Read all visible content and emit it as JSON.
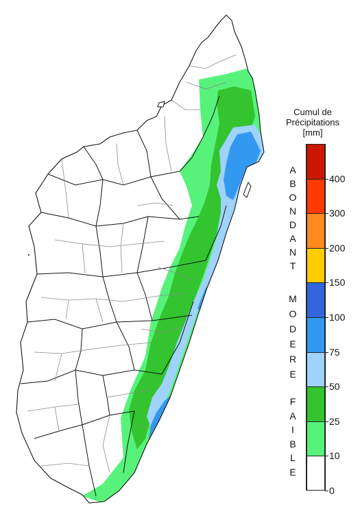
{
  "map": {
    "zones": [
      {
        "name": "zone-10-25",
        "color": "#57f27a"
      },
      {
        "name": "zone-25-50",
        "color": "#33c430"
      },
      {
        "name": "zone-50-75",
        "color": "#9fd3fb"
      },
      {
        "name": "zone-75-100",
        "color": "#3399f0"
      }
    ]
  },
  "legend": {
    "title_line1": "Cumul de",
    "title_line2": "Précipitations",
    "title_line3": "[mm]",
    "categories": [
      {
        "word": "ABONDANT",
        "letters": [
          "A",
          "B",
          "O",
          "N",
          "D",
          "A",
          "N",
          "T"
        ]
      },
      {
        "word": "MODERE",
        "letters": [
          "M",
          "O",
          "D",
          "E",
          "R",
          "E"
        ]
      },
      {
        "word": "FAIBLE",
        "letters": [
          "F",
          "A",
          "I",
          "B",
          "L",
          "E"
        ]
      }
    ],
    "bins": [
      {
        "label": "400",
        "color": "#cc1800"
      },
      {
        "label": "300",
        "color": "#ff3a00"
      },
      {
        "label": "200",
        "color": "#ff8a1e"
      },
      {
        "label": "150",
        "color": "#ffcc00"
      },
      {
        "label": "100",
        "color": "#3366dd"
      },
      {
        "label": "75",
        "color": "#3399f0"
      },
      {
        "label": "50",
        "color": "#9fd3fb"
      },
      {
        "label": "25",
        "color": "#33c430"
      },
      {
        "label": "10",
        "color": "#57f27a"
      },
      {
        "label": "0",
        "color": "#ffffff"
      }
    ],
    "top_color": "#cc1800"
  }
}
